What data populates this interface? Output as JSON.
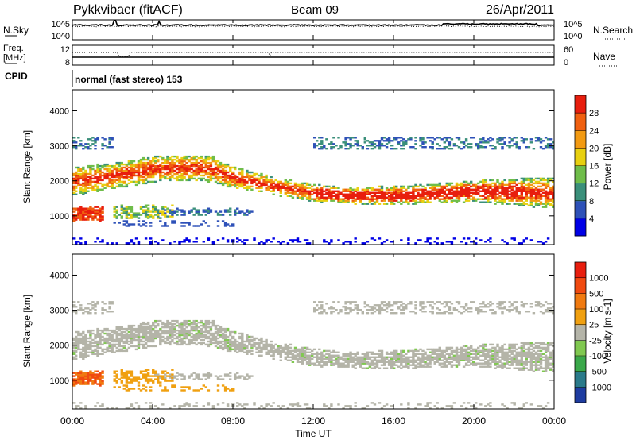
{
  "header": {
    "station": "Pykkvibaer (fitACF)",
    "beam": "Beam 09",
    "date": "26/Apr/2011"
  },
  "noise_panel": {
    "left_label": "N.Sky",
    "right_label": "N.Search",
    "left_ticks": [
      "10^5",
      "10^0"
    ],
    "right_ticks": [
      "10^5",
      "10^0"
    ]
  },
  "freq_panel": {
    "left_label_line1": "Freq.",
    "left_label_line2": "[MHz]",
    "right_label": "Nave",
    "left_ticks": [
      "12",
      "8"
    ],
    "right_ticks": [
      "60",
      "0"
    ]
  },
  "cpid": {
    "label": "CPID",
    "value": "normal (fast stereo) 153"
  },
  "time_axis": {
    "label": "Time UT",
    "ticks": [
      "00:00",
      "04:00",
      "08:00",
      "12:00",
      "16:00",
      "20:00",
      "00:00"
    ]
  },
  "chart_data": [
    {
      "type": "heatmap",
      "name": "power",
      "ylabel": "Slant Range [km]",
      "yticks": [
        "1000",
        "2000",
        "3000",
        "4000"
      ],
      "ylim": [
        180,
        4600
      ],
      "xlim": [
        0,
        24
      ],
      "colorbar": {
        "label": "Power [dB]",
        "ticks": [
          "28",
          "24",
          "20",
          "16",
          "12",
          "8",
          "4"
        ],
        "colors": [
          "#0000e6",
          "#2e51b8",
          "#3a8f7a",
          "#6fbd4a",
          "#e8d010",
          "#f29a12",
          "#f06010",
          "#e81e0e"
        ]
      }
    },
    {
      "type": "heatmap",
      "name": "velocity",
      "ylabel": "Slant Range [km]",
      "yticks": [
        "1000",
        "2000",
        "3000",
        "4000"
      ],
      "ylim": [
        180,
        4600
      ],
      "xlim": [
        0,
        24
      ],
      "colorbar": {
        "label": "Velocity [m s-1]",
        "ticks": [
          "1000",
          "500",
          "100",
          "25",
          "-25",
          "-100",
          "-500",
          "-1000"
        ],
        "colors": [
          "#1e3ca0",
          "#2a7a8a",
          "#3aa84a",
          "#80c850",
          "#b4b4a8",
          "#f0a010",
          "#f07a10",
          "#f04a10",
          "#e81e0e"
        ]
      }
    }
  ]
}
